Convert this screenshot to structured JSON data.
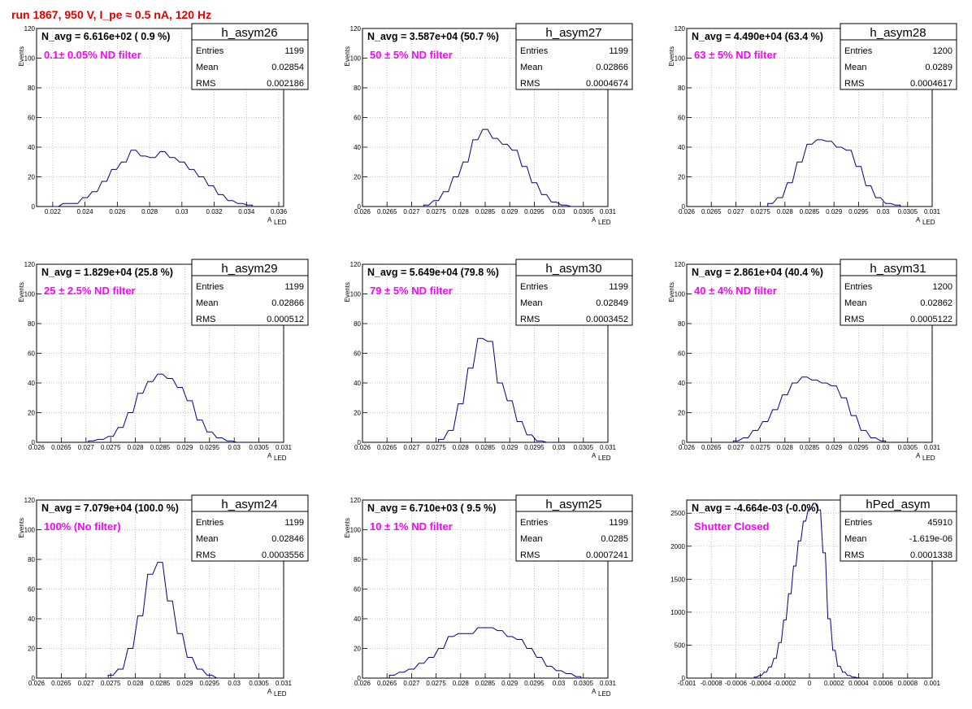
{
  "run_title": "run 1867,   950 V, I_pe ≈ 0.5 nA, 120 Hz",
  "colors": {
    "title": "#e00000",
    "histogram": "#000080",
    "note": "#ff00ff",
    "grid": "#b0b0b0"
  },
  "chart_data": [
    {
      "type": "bar",
      "name": "h_asym26",
      "stats": [
        [
          "Entries",
          "1199"
        ],
        [
          "Mean",
          "0.02854"
        ],
        [
          "RMS",
          "0.002186"
        ]
      ],
      "navg": "N_avg = 6.616e+02 ( 0.9 %)",
      "note": "0.1± 0.05% ND filter",
      "xlabel": "A",
      "xlabel_sub": "LED",
      "ylabel": "Events",
      "xlim": [
        0.021,
        0.0363
      ],
      "ylim": [
        0,
        120
      ],
      "xticks": [
        0.022,
        0.024,
        0.026,
        0.028,
        0.03,
        0.032,
        0.034,
        0.036
      ],
      "xtick_labels": [
        "0.022",
        "0.024",
        "0.026",
        "0.028",
        "0.03",
        "0.032",
        "0.034",
        "0.036"
      ],
      "yticks": [
        0,
        20,
        40,
        60,
        80,
        100,
        120
      ],
      "x": [
        0.0222,
        0.0228,
        0.0234,
        0.024,
        0.0246,
        0.0252,
        0.0258,
        0.0264,
        0.027,
        0.0276,
        0.0282,
        0.0288,
        0.0294,
        0.03,
        0.0306,
        0.0312,
        0.0318,
        0.0324,
        0.033,
        0.0336,
        0.0342
      ],
      "values": [
        0,
        2,
        2,
        6,
        10,
        17,
        25,
        30,
        38,
        34,
        33,
        37,
        33,
        30,
        25,
        20,
        14,
        8,
        4,
        2,
        1
      ]
    },
    {
      "type": "bar",
      "name": "h_asym27",
      "stats": [
        [
          "Entries",
          "1199"
        ],
        [
          "Mean",
          "0.02866"
        ],
        [
          "RMS",
          "0.0004674"
        ]
      ],
      "navg": "N_avg = 3.587e+04 (50.7 %)",
      "note": "50 ± 5% ND filter",
      "xlabel": "A",
      "xlabel_sub": "LED",
      "ylabel": "Events",
      "xlim": [
        0.026,
        0.031
      ],
      "ylim": [
        0,
        120
      ],
      "xticks": [
        0.026,
        0.0265,
        0.027,
        0.0275,
        0.028,
        0.0285,
        0.029,
        0.0295,
        0.03,
        0.0305,
        0.031
      ],
      "xtick_labels": [
        "0.026",
        "0.0265",
        "0.027",
        "0.0275",
        "0.028",
        "0.0285",
        "0.029",
        "0.0295",
        "0.03",
        "0.0305",
        "0.031"
      ],
      "yticks": [
        0,
        20,
        40,
        60,
        80,
        100,
        120
      ],
      "x": [
        0.0273,
        0.0275,
        0.0277,
        0.0279,
        0.0281,
        0.0283,
        0.0285,
        0.0287,
        0.0289,
        0.0291,
        0.0293,
        0.0295,
        0.0297,
        0.0299,
        0.0301,
        0.0303
      ],
      "values": [
        1,
        4,
        10,
        20,
        30,
        45,
        52,
        46,
        42,
        38,
        27,
        16,
        8,
        3,
        1,
        0
      ]
    },
    {
      "type": "bar",
      "name": "h_asym28",
      "stats": [
        [
          "Entries",
          "1200"
        ],
        [
          "Mean",
          "0.0289"
        ],
        [
          "RMS",
          "0.0004617"
        ]
      ],
      "navg": "N_avg = 4.490e+04 (63.4 %)",
      "note": "63 ± 5% ND filter",
      "xlabel": "A",
      "xlabel_sub": "LED",
      "ylabel": "Events",
      "xlim": [
        0.026,
        0.031
      ],
      "ylim": [
        0,
        120
      ],
      "xticks": [
        0.026,
        0.0265,
        0.027,
        0.0275,
        0.028,
        0.0285,
        0.029,
        0.0295,
        0.03,
        0.0305,
        0.031
      ],
      "xtick_labels": [
        "0.026",
        "0.0265",
        "0.027",
        "0.0275",
        "0.028",
        "0.0285",
        "0.029",
        "0.0295",
        "0.03",
        "0.0305",
        "0.031"
      ],
      "yticks": [
        0,
        20,
        40,
        60,
        80,
        100,
        120
      ],
      "x": [
        0.0277,
        0.0279,
        0.0281,
        0.0283,
        0.0285,
        0.0287,
        0.0289,
        0.0291,
        0.0293,
        0.0295,
        0.0297,
        0.0299,
        0.0301,
        0.0303
      ],
      "values": [
        2,
        6,
        16,
        30,
        42,
        45,
        44,
        40,
        38,
        27,
        14,
        6,
        2,
        1
      ]
    },
    {
      "type": "bar",
      "name": "h_asym29",
      "stats": [
        [
          "Entries",
          "1199"
        ],
        [
          "Mean",
          "0.02866"
        ],
        [
          "RMS",
          "0.000512"
        ]
      ],
      "navg": "N_avg = 1.829e+04 (25.8 %)",
      "note": "25 ± 2.5% ND filter",
      "xlabel": "A",
      "xlabel_sub": "LED",
      "ylabel": "Events",
      "xlim": [
        0.026,
        0.031
      ],
      "ylim": [
        0,
        120
      ],
      "xticks": [
        0.026,
        0.0265,
        0.027,
        0.0275,
        0.028,
        0.0285,
        0.029,
        0.0295,
        0.03,
        0.0305,
        0.031
      ],
      "xtick_labels": [
        "0.026",
        "0.0265",
        "0.027",
        "0.0275",
        "0.028",
        "0.0285",
        "0.029",
        "0.0295",
        "0.03",
        "0.0305",
        "0.031"
      ],
      "yticks": [
        0,
        20,
        40,
        60,
        80,
        100,
        120
      ],
      "x": [
        0.0271,
        0.0273,
        0.0275,
        0.0277,
        0.0279,
        0.0281,
        0.0283,
        0.0285,
        0.0287,
        0.0289,
        0.0291,
        0.0293,
        0.0295,
        0.0297,
        0.0299,
        0.0301
      ],
      "values": [
        1,
        2,
        4,
        10,
        20,
        33,
        41,
        46,
        43,
        37,
        28,
        15,
        7,
        3,
        1,
        0
      ]
    },
    {
      "type": "bar",
      "name": "h_asym30",
      "stats": [
        [
          "Entries",
          "1199"
        ],
        [
          "Mean",
          "0.02849"
        ],
        [
          "RMS",
          "0.0003452"
        ]
      ],
      "navg": "N_avg = 5.649e+04 (79.8 %)",
      "note": "79 ± 5% ND filter",
      "xlabel": "A",
      "xlabel_sub": "LED",
      "ylabel": "Events",
      "xlim": [
        0.026,
        0.031
      ],
      "ylim": [
        0,
        120
      ],
      "xticks": [
        0.026,
        0.0265,
        0.027,
        0.0275,
        0.028,
        0.0285,
        0.029,
        0.0295,
        0.03,
        0.0305,
        0.031
      ],
      "xtick_labels": [
        "0.026",
        "0.0265",
        "0.027",
        "0.0275",
        "0.028",
        "0.0285",
        "0.029",
        "0.0295",
        "0.03",
        "0.0305",
        "0.031"
      ],
      "yticks": [
        0,
        20,
        40,
        60,
        80,
        100,
        120
      ],
      "x": [
        0.0276,
        0.0278,
        0.028,
        0.0282,
        0.0284,
        0.0286,
        0.0288,
        0.029,
        0.0292,
        0.0294,
        0.0296,
        0.0298
      ],
      "values": [
        2,
        8,
        26,
        50,
        70,
        68,
        40,
        28,
        14,
        5,
        1,
        0
      ]
    },
    {
      "type": "bar",
      "name": "h_asym31",
      "stats": [
        [
          "Entries",
          "1200"
        ],
        [
          "Mean",
          "0.02862"
        ],
        [
          "RMS",
          "0.0005122"
        ]
      ],
      "navg": "N_avg = 2.861e+04 (40.4 %)",
      "note": "40 ± 4% ND filter",
      "xlabel": "A",
      "xlabel_sub": "LED",
      "ylabel": "Events",
      "xlim": [
        0.026,
        0.031
      ],
      "ylim": [
        0,
        120
      ],
      "xticks": [
        0.026,
        0.0265,
        0.027,
        0.0275,
        0.028,
        0.0285,
        0.029,
        0.0295,
        0.03,
        0.0305,
        0.031
      ],
      "xtick_labels": [
        "0.026",
        "0.0265",
        "0.027",
        "0.0275",
        "0.028",
        "0.0285",
        "0.029",
        "0.0295",
        "0.03",
        "0.0305",
        "0.031"
      ],
      "yticks": [
        0,
        20,
        40,
        60,
        80,
        100,
        120
      ],
      "x": [
        0.027,
        0.0272,
        0.0274,
        0.0276,
        0.0278,
        0.028,
        0.0282,
        0.0284,
        0.0286,
        0.0288,
        0.029,
        0.0292,
        0.0294,
        0.0296,
        0.0298,
        0.03
      ],
      "values": [
        1,
        3,
        8,
        14,
        22,
        32,
        40,
        44,
        42,
        40,
        38,
        30,
        18,
        8,
        3,
        1
      ]
    },
    {
      "type": "bar",
      "name": "h_asym24",
      "stats": [
        [
          "Entries",
          "1199"
        ],
        [
          "Mean",
          "0.02846"
        ],
        [
          "RMS",
          "0.0003556"
        ]
      ],
      "navg": "N_avg = 7.079e+04 (100.0 %)",
      "note": "100% (No filter)",
      "xlabel": "A",
      "xlabel_sub": "LED",
      "ylabel": "Events",
      "xlim": [
        0.026,
        0.031
      ],
      "ylim": [
        0,
        120
      ],
      "xticks": [
        0.026,
        0.0265,
        0.027,
        0.0275,
        0.028,
        0.0285,
        0.029,
        0.0295,
        0.03,
        0.0305,
        0.031
      ],
      "xtick_labels": [
        "0.026",
        "0.0265",
        "0.027",
        "0.0275",
        "0.028",
        "0.0285",
        "0.029",
        "0.0295",
        "0.03",
        "0.0305",
        "0.031"
      ],
      "yticks": [
        0,
        20,
        40,
        60,
        80,
        100,
        120
      ],
      "x": [
        0.0275,
        0.0277,
        0.0279,
        0.0281,
        0.0283,
        0.0285,
        0.0287,
        0.0289,
        0.0291,
        0.0293,
        0.0295,
        0.0297
      ],
      "values": [
        2,
        6,
        20,
        42,
        70,
        78,
        52,
        30,
        14,
        6,
        2,
        0
      ]
    },
    {
      "type": "bar",
      "name": "h_asym25",
      "stats": [
        [
          "Entries",
          "1199"
        ],
        [
          "Mean",
          "0.0285"
        ],
        [
          "RMS",
          "0.0007241"
        ]
      ],
      "navg": "N_avg = 6.710e+03 ( 9.5 %)",
      "note": "10 ± 1% ND filter",
      "xlabel": "A",
      "xlabel_sub": "LED",
      "ylabel": "Events",
      "xlim": [
        0.026,
        0.031
      ],
      "ylim": [
        0,
        120
      ],
      "xticks": [
        0.026,
        0.0265,
        0.027,
        0.0275,
        0.028,
        0.0285,
        0.029,
        0.0295,
        0.03,
        0.0305,
        0.031
      ],
      "xtick_labels": [
        "0.026",
        "0.0265",
        "0.027",
        "0.0275",
        "0.028",
        "0.0285",
        "0.029",
        "0.0295",
        "0.03",
        "0.0305",
        "0.031"
      ],
      "yticks": [
        0,
        20,
        40,
        60,
        80,
        100,
        120
      ],
      "x": [
        0.0266,
        0.0268,
        0.027,
        0.0272,
        0.0274,
        0.0276,
        0.0278,
        0.028,
        0.0282,
        0.0284,
        0.0286,
        0.0288,
        0.029,
        0.0292,
        0.0294,
        0.0296,
        0.0298,
        0.03,
        0.0302,
        0.0304
      ],
      "values": [
        2,
        4,
        6,
        10,
        14,
        20,
        28,
        30,
        30,
        34,
        34,
        32,
        28,
        26,
        20,
        14,
        8,
        5,
        3,
        1
      ]
    },
    {
      "type": "bar",
      "name": "hPed_asym",
      "stats": [
        [
          "Entries",
          "45910"
        ],
        [
          "Mean",
          "-1.619e-06"
        ],
        [
          "RMS",
          "0.0001338"
        ]
      ],
      "navg": "N_avg = -4.664e-03 (-0.0%)",
      "note": "Shutter Closed",
      "xlabel": "",
      "xlabel_sub": "",
      "ylabel": "",
      "xlim": [
        -0.001,
        0.001
      ],
      "ylim": [
        0,
        2700
      ],
      "xticks": [
        -0.001,
        -0.0008,
        -0.0006,
        -0.0004,
        -0.0002,
        0,
        0.0002,
        0.0004,
        0.0006,
        0.0008,
        0.001
      ],
      "xtick_labels": [
        "-0.001",
        "-0.0008",
        "-0.0006",
        "-0.0004",
        "-0.0002",
        "0",
        "0.0002",
        "0.0004",
        "0.0006",
        "0.0008",
        "0.001"
      ],
      "yticks": [
        0,
        500,
        1000,
        1500,
        2000,
        2500
      ],
      "x": [
        -0.00044,
        -0.0004,
        -0.00036,
        -0.00032,
        -0.00028,
        -0.00024,
        -0.0002,
        -0.00016,
        -0.00012,
        -8e-05,
        -4e-05,
        0.0,
        4e-05,
        8e-05,
        0.00012,
        0.00016,
        0.0002,
        0.00024,
        0.00028,
        0.00032,
        0.00036,
        0.0004
      ],
      "values": [
        15,
        40,
        90,
        170,
        300,
        540,
        880,
        1280,
        1700,
        2080,
        2380,
        2560,
        2650,
        2550,
        1900,
        900,
        420,
        180,
        90,
        40,
        15,
        5
      ]
    }
  ]
}
